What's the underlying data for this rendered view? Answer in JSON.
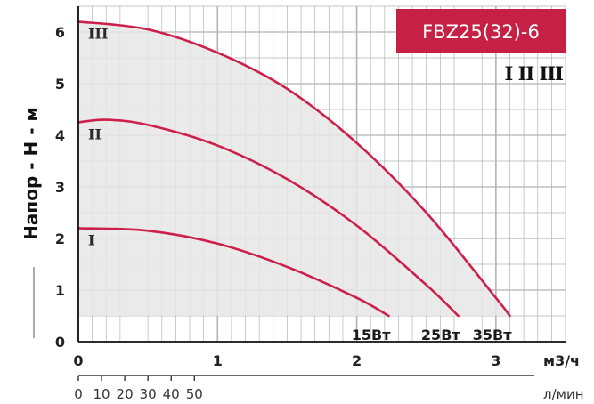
{
  "chart_data": {
    "type": "line",
    "title": "FBZ25(32)-6",
    "ylabel": "Напор - H - м",
    "xlabel": "м3/ч",
    "xlabel_secondary": "л/мин",
    "xlim": [
      0,
      3.5
    ],
    "ylim": [
      0,
      6.5
    ],
    "x_ticks": [
      "0",
      "1",
      "2",
      "3"
    ],
    "y_ticks": [
      "0",
      "1",
      "2",
      "3",
      "4",
      "5",
      "6"
    ],
    "x2_ticks": [
      "0",
      "10",
      "20",
      "30",
      "40",
      "50"
    ],
    "grid": true,
    "speed_legend": "I II III",
    "series": [
      {
        "name": "I",
        "power_label": "15Вт",
        "x": [
          0,
          0.5,
          1.0,
          1.5,
          2.0,
          2.23
        ],
        "y": [
          2.2,
          2.15,
          1.9,
          1.45,
          0.85,
          0.5
        ]
      },
      {
        "name": "II",
        "power_label": "25Вт",
        "x": [
          0,
          0.2,
          0.5,
          1.0,
          1.5,
          2.0,
          2.5,
          2.73
        ],
        "y": [
          4.25,
          4.3,
          4.2,
          3.8,
          3.15,
          2.25,
          1.1,
          0.5
        ]
      },
      {
        "name": "III",
        "power_label": "35Вт",
        "x": [
          0,
          0.5,
          1.0,
          1.5,
          2.0,
          2.5,
          3.0,
          3.1
        ],
        "y": [
          6.2,
          6.05,
          5.6,
          4.9,
          3.85,
          2.5,
          0.85,
          0.5
        ]
      }
    ]
  },
  "colors": {
    "curve": "#cc1f4a",
    "band": "#c72045",
    "fill": "#e6e6e6",
    "grid": "#b3b3b3",
    "axis": "#111111"
  }
}
